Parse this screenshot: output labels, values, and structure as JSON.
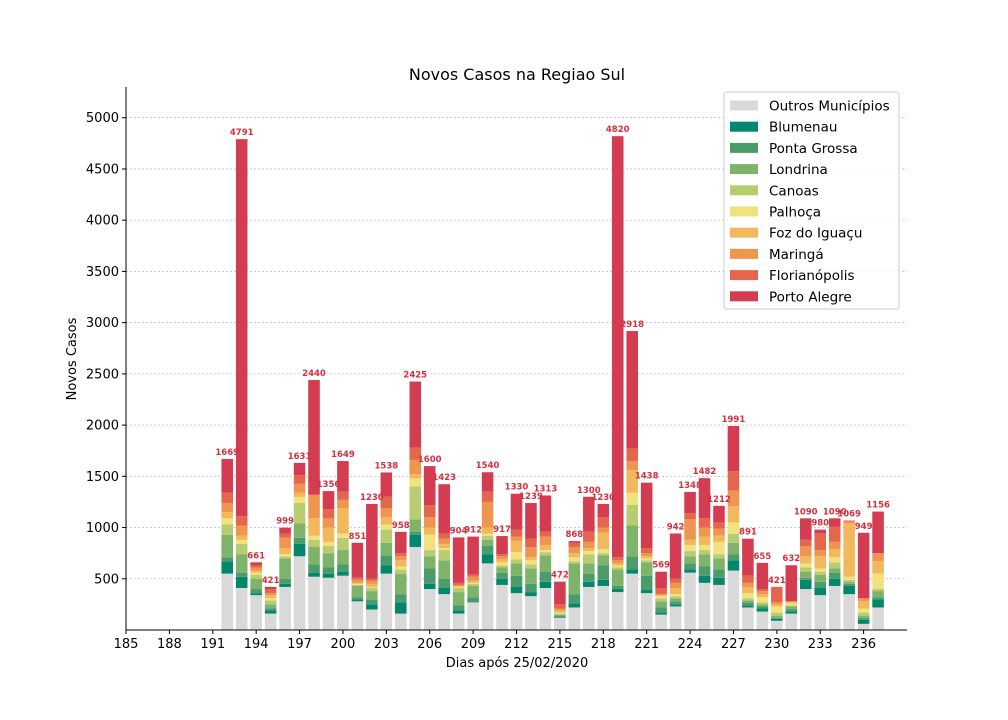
{
  "chart_data": {
    "type": "bar",
    "stacked": true,
    "title": "Novos Casos na Regiao Sul",
    "xlabel": "Dias após 25/02/2020",
    "ylabel": "Novos Casos",
    "xlim": [
      185,
      239
    ],
    "ylim": [
      0,
      5300
    ],
    "xticks": [
      185,
      188,
      191,
      194,
      197,
      200,
      203,
      206,
      209,
      212,
      215,
      218,
      221,
      224,
      227,
      230,
      233,
      236
    ],
    "yticks": [
      500,
      1000,
      1500,
      2000,
      2500,
      3000,
      3500,
      4000,
      4500,
      5000
    ],
    "grid": "y",
    "legend_position": "top-right",
    "series": [
      {
        "name": "Outros Municípios",
        "color": "#d9d9d9"
      },
      {
        "name": "Blumenau",
        "color": "#00876c"
      },
      {
        "name": "Ponta Grossa",
        "color": "#4c9c6b"
      },
      {
        "name": "Londrina",
        "color": "#7fb36a"
      },
      {
        "name": "Canoas",
        "color": "#b8cc72"
      },
      {
        "name": "Palhoça",
        "color": "#f3e17e"
      },
      {
        "name": "Foz do Iguaçu",
        "color": "#f2b95c"
      },
      {
        "name": "Maringá",
        "color": "#ee9650"
      },
      {
        "name": "Florianópolis",
        "color": "#e4674d"
      },
      {
        "name": "Porto Alegre",
        "color": "#d43d51"
      }
    ],
    "days": [
      {
        "day": 192,
        "total": 1669,
        "parts": [
          550,
          120,
          40,
          220,
          100,
          60,
          60,
          90,
          100
        ]
      },
      {
        "day": 193,
        "total": 4791,
        "parts": [
          410,
          110,
          40,
          180,
          100,
          40,
          40,
          100,
          90
        ]
      },
      {
        "day": 194,
        "total": 661,
        "parts": [
          340,
          20,
          40,
          100,
          40,
          20,
          20,
          30,
          20
        ]
      },
      {
        "day": 195,
        "total": 421,
        "parts": [
          160,
          30,
          20,
          40,
          40,
          20,
          30,
          20,
          40
        ]
      },
      {
        "day": 196,
        "total": 999,
        "parts": [
          420,
          30,
          50,
          200,
          20,
          20,
          60,
          100,
          40
        ]
      },
      {
        "day": 197,
        "total": 1631,
        "parts": [
          720,
          120,
          60,
          140,
          200,
          60,
          40,
          90,
          80
        ]
      },
      {
        "day": 198,
        "total": 2440,
        "parts": [
          520,
          40,
          80,
          170,
          70,
          40,
          170,
          230,
          0
        ]
      },
      {
        "day": 199,
        "total": 1356,
        "parts": [
          510,
          40,
          60,
          140,
          70,
          40,
          140,
          90,
          90
        ]
      },
      {
        "day": 200,
        "total": 1649,
        "parts": [
          530,
          40,
          70,
          140,
          120,
          40,
          250,
          80,
          80
        ]
      },
      {
        "day": 201,
        "total": 851,
        "parts": [
          280,
          20,
          20,
          110,
          10,
          10,
          10,
          30,
          20
        ]
      },
      {
        "day": 202,
        "total": 1230,
        "parts": [
          200,
          50,
          50,
          80,
          30,
          10,
          30,
          30,
          20
        ]
      },
      {
        "day": 203,
        "total": 1538,
        "parts": [
          550,
          80,
          100,
          120,
          130,
          50,
          70,
          90,
          110
        ]
      },
      {
        "day": 204,
        "total": 958,
        "parts": [
          160,
          110,
          80,
          200,
          40,
          30,
          60,
          40,
          30
        ]
      },
      {
        "day": 205,
        "total": 2425,
        "parts": [
          810,
          120,
          30,
          120,
          320,
          80,
          40,
          140,
          120
        ]
      },
      {
        "day": 206,
        "total": 1600,
        "parts": [
          400,
          50,
          150,
          120,
          60,
          150,
          70,
          100,
          120
        ]
      },
      {
        "day": 207,
        "total": 1423,
        "parts": [
          350,
          60,
          90,
          180,
          100,
          20,
          40,
          50,
          50
        ]
      },
      {
        "day": 208,
        "total": 904,
        "parts": [
          160,
          30,
          50,
          130,
          40,
          10,
          10,
          10,
          20
        ]
      },
      {
        "day": 209,
        "total": 912,
        "parts": [
          270,
          10,
          40,
          110,
          20,
          10,
          20,
          40,
          20
        ]
      },
      {
        "day": 210,
        "total": 1540,
        "parts": [
          650,
          90,
          80,
          60,
          40,
          20,
          60,
          250,
          100
        ]
      },
      {
        "day": 211,
        "total": 917,
        "parts": [
          440,
          60,
          60,
          50,
          20,
          30,
          30,
          30,
          20
        ]
      },
      {
        "day": 212,
        "total": 1330,
        "parts": [
          360,
          60,
          110,
          120,
          40,
          70,
          110,
          40,
          70
        ]
      },
      {
        "day": 213,
        "total": 1239,
        "parts": [
          330,
          40,
          80,
          150,
          40,
          40,
          30,
          100,
          80
        ]
      },
      {
        "day": 214,
        "total": 1313,
        "parts": [
          410,
          60,
          100,
          160,
          30,
          20,
          50,
          80,
          50
        ]
      },
      {
        "day": 215,
        "total": 472,
        "parts": [
          120,
          10,
          10,
          10,
          10,
          10,
          20,
          20,
          40
        ]
      },
      {
        "day": 216,
        "total": 868,
        "parts": [
          220,
          40,
          90,
          300,
          20,
          40,
          40,
          60,
          40
        ]
      },
      {
        "day": 217,
        "total": 1300,
        "parts": [
          420,
          50,
          80,
          100,
          90,
          30,
          30,
          60,
          100
        ]
      },
      {
        "day": 218,
        "total": 1230,
        "parts": [
          430,
          60,
          140,
          100,
          20,
          40,
          160,
          50,
          100
        ]
      },
      {
        "day": 219,
        "total": 4820,
        "parts": [
          370,
          30,
          30,
          160,
          20,
          20,
          20,
          30,
          30
        ]
      },
      {
        "day": 220,
        "total": 2918,
        "parts": [
          550,
          40,
          130,
          300,
          200,
          120,
          220,
          90,
          120
        ]
      },
      {
        "day": 221,
        "total": 1438,
        "parts": [
          360,
          30,
          140,
          130,
          20,
          20,
          20,
          30,
          50
        ]
      },
      {
        "day": 222,
        "total": 569,
        "parts": [
          150,
          20,
          50,
          60,
          30,
          20,
          10,
          10,
          60
        ]
      },
      {
        "day": 223,
        "total": 942,
        "parts": [
          230,
          20,
          30,
          30,
          20,
          20,
          60,
          50,
          40
        ]
      },
      {
        "day": 224,
        "total": 1348,
        "parts": [
          560,
          30,
          60,
          70,
          50,
          60,
          50,
          200,
          60
        ]
      },
      {
        "day": 225,
        "total": 1482,
        "parts": [
          460,
          70,
          90,
          120,
          40,
          50,
          80,
          90,
          90
        ]
      },
      {
        "day": 226,
        "total": 1212,
        "parts": [
          440,
          70,
          80,
          110,
          40,
          120,
          60,
          70,
          60
        ]
      },
      {
        "day": 227,
        "total": 1991,
        "parts": [
          580,
          100,
          60,
          110,
          90,
          110,
          160,
          150,
          190
        ]
      },
      {
        "day": 228,
        "total": 891,
        "parts": [
          220,
          20,
          30,
          20,
          20,
          50,
          60,
          40,
          70
        ]
      },
      {
        "day": 229,
        "total": 655,
        "parts": [
          180,
          30,
          20,
          20,
          20,
          50,
          30,
          30,
          20
        ]
      },
      {
        "day": 230,
        "total": 421,
        "parts": [
          90,
          20,
          10,
          20,
          30,
          60,
          20,
          20,
          150
        ]
      },
      {
        "day": 231,
        "total": 632,
        "parts": [
          160,
          20,
          20,
          30,
          10,
          20,
          20,
          0,
          0
        ]
      },
      {
        "day": 232,
        "total": 1090,
        "parts": [
          400,
          90,
          20,
          60,
          40,
          40,
          70,
          100,
          60
        ]
      },
      {
        "day": 233,
        "total": 980,
        "parts": [
          340,
          70,
          60,
          70,
          30,
          30,
          120,
          60,
          160
        ]
      },
      {
        "day": 234,
        "total": 1090,
        "parts": [
          430,
          70,
          60,
          40,
          60,
          50,
          80,
          70,
          150
        ]
      },
      {
        "day": 235,
        "total": 1069,
        "parts": [
          350,
          80,
          20,
          20,
          20,
          30,
          520,
          20,
          9
        ]
      },
      {
        "day": 236,
        "total": 949,
        "parts": [
          60,
          40,
          20,
          20,
          30,
          40,
          70,
          30,
          0
        ]
      },
      {
        "day": 237,
        "total": 1156,
        "parts": [
          220,
          80,
          20,
          60,
          20,
          150,
          120,
          80,
          0
        ]
      }
    ]
  }
}
